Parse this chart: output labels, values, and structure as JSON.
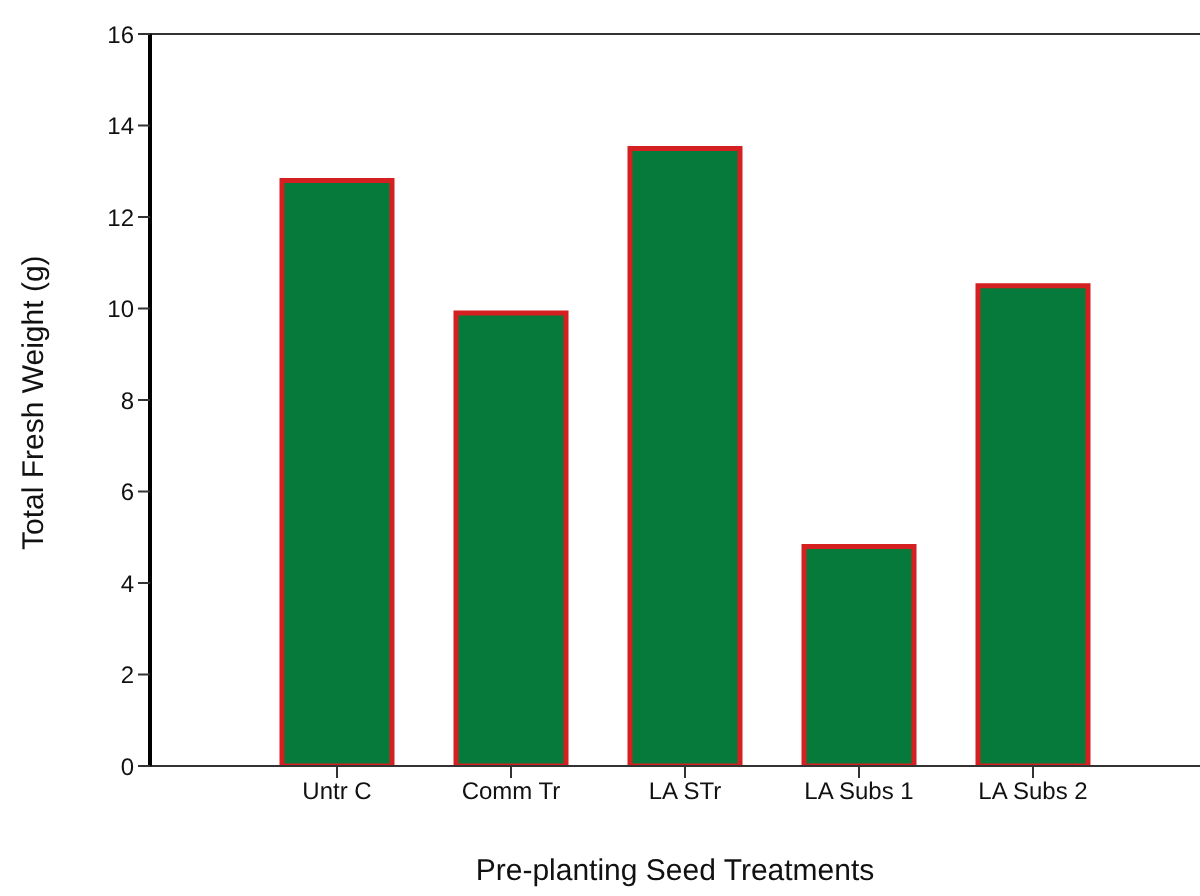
{
  "chart_data": {
    "type": "bar",
    "xlabel": "Pre-planting Seed Treatments",
    "ylabel": "Total Fresh Weight (g)",
    "categories": [
      "Untr C",
      "Comm Tr",
      "LA STr",
      "LA Subs 1",
      "LA Subs 2"
    ],
    "series": [
      {
        "color": "#067a3a",
        "values": [
          12.8,
          9.9,
          13.5,
          4.8,
          10.5
        ]
      }
    ],
    "ylim": [
      0,
      16
    ],
    "yticks": [
      0,
      2,
      4,
      6,
      8,
      10,
      12,
      14,
      16
    ],
    "grid": false
  }
}
